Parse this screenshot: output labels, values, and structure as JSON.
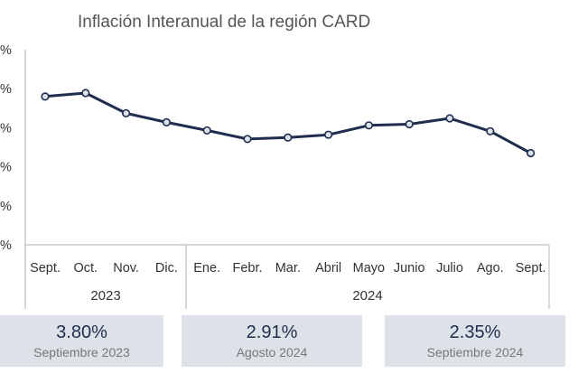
{
  "chart_data": {
    "type": "line",
    "title": "Inflación Interanual de la región CARD",
    "y_tick_labels": [
      "%",
      "%",
      "%",
      "%",
      "%",
      "%"
    ],
    "categories": [
      "Sept.",
      "Oct.",
      "Nov.",
      "Dic.",
      "Ene.",
      "Febr.",
      "Mar.",
      "Abril",
      "Mayo",
      "Junio",
      "Julio",
      "Ago.",
      "Sept."
    ],
    "year_groups": [
      {
        "label": "2023",
        "count": 4
      },
      {
        "label": "2024",
        "count": 9
      }
    ],
    "series": [
      {
        "values": [
          3.8,
          3.89,
          3.37,
          3.14,
          2.93,
          2.71,
          2.75,
          2.82,
          3.06,
          3.09,
          3.24,
          2.91,
          2.35
        ]
      }
    ],
    "ylim": [
      0,
      5
    ],
    "line_color": "#1f2d4e",
    "marker_fill": "#dde2e8",
    "grid": false
  },
  "highlights": [
    {
      "value": "3.80%",
      "label": "Septiembre 2023"
    },
    {
      "value": "2.91%",
      "label": "Agosto 2024"
    },
    {
      "value": "2.35%",
      "label": "Septiembre 2024"
    }
  ]
}
